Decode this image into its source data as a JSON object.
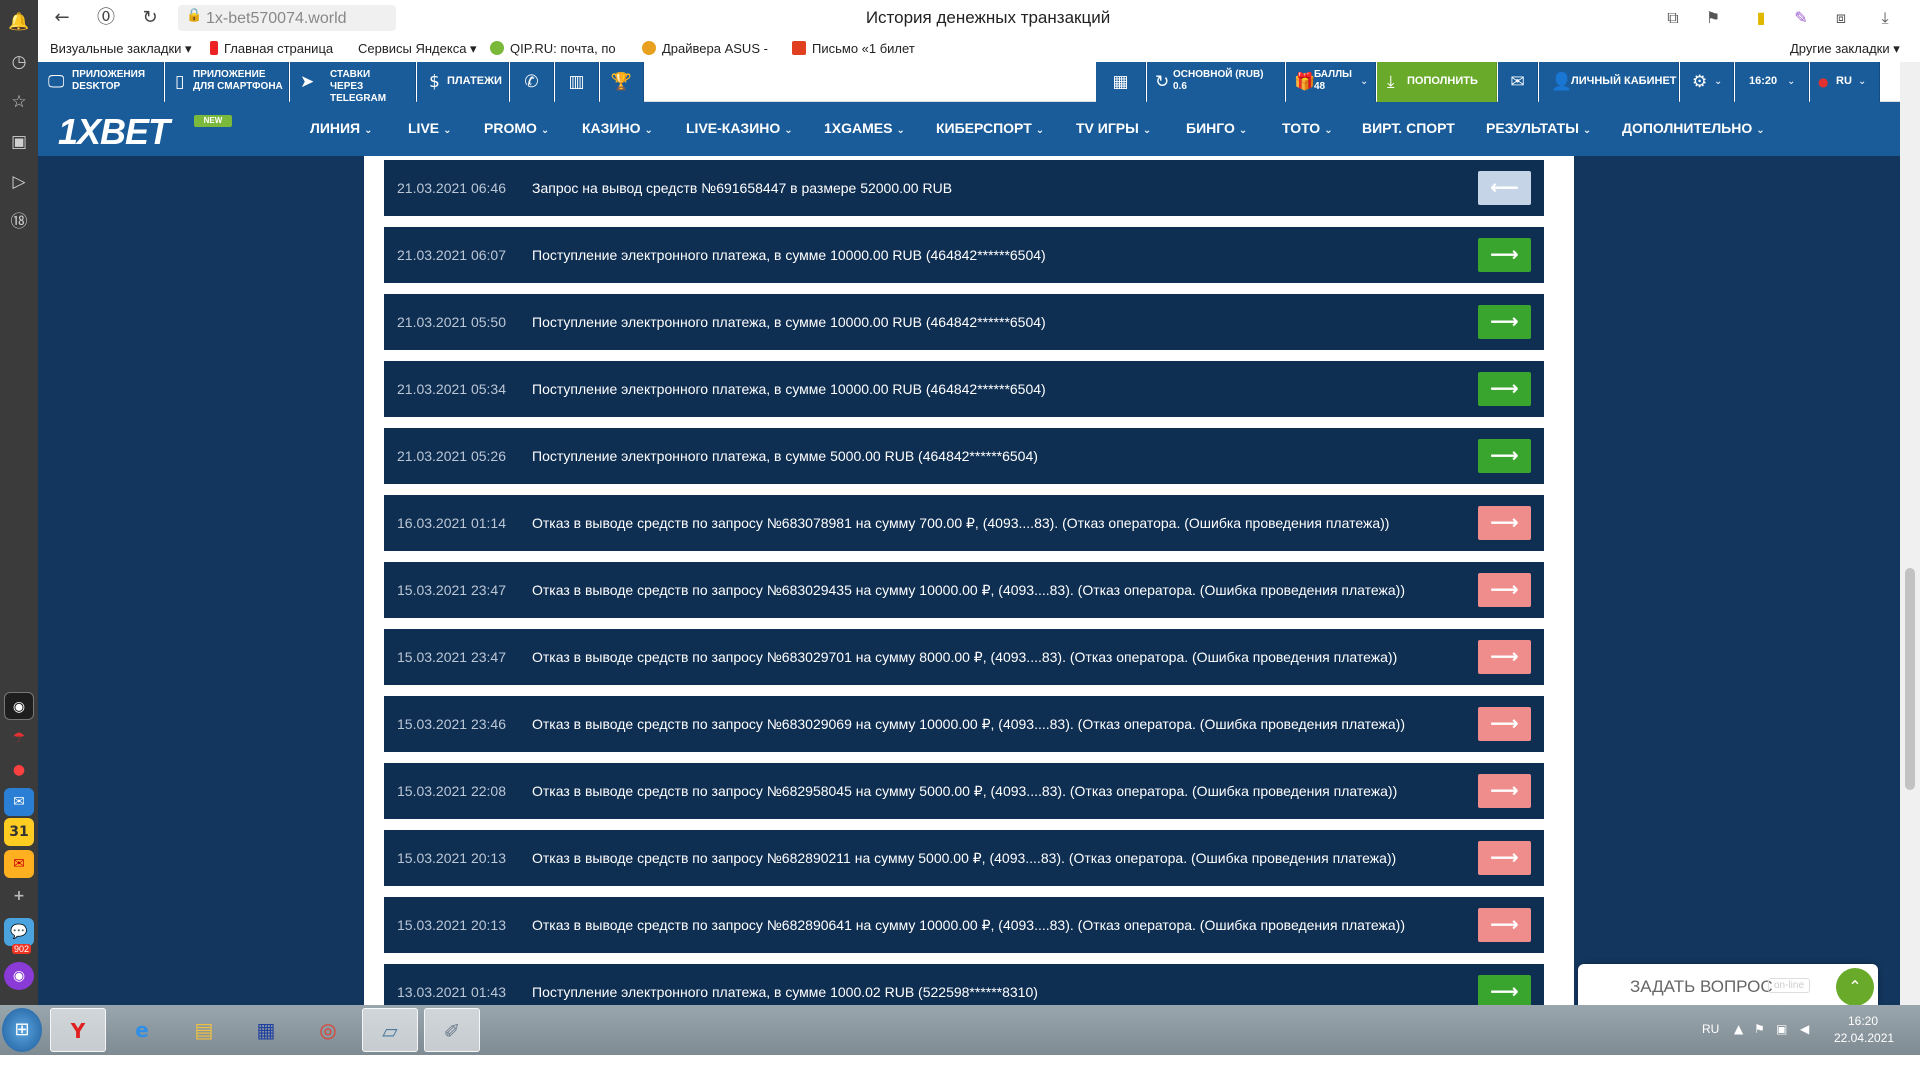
{
  "browser": {
    "url": "1x-bet570074.world",
    "page_title": "История денежных транзакций",
    "bookmarks": [
      {
        "label": "Визуальные закладки ▾"
      },
      {
        "label": "Главная страница"
      },
      {
        "label": "Сервисы Яндекса ▾"
      },
      {
        "label": "QIP.RU: почта, по"
      },
      {
        "label": "Драйвера ASUS -"
      },
      {
        "label": "Письмо «1 билет"
      }
    ],
    "other_bookmarks": "Другие закладки ▾"
  },
  "site_toolbar": {
    "apps_desktop": [
      "ПРИЛОЖЕНИЯ",
      "DESKTOP"
    ],
    "app_phone": [
      "ПРИЛОЖЕНИЕ",
      "ДЛЯ СМАРТФОНА"
    ],
    "telegram": [
      "СТАВКИ",
      "ЧЕРЕЗ TELEGRAM"
    ],
    "payments": "ПЛАТЕЖИ",
    "balance": [
      "ОСНОВНОЙ (RUB)",
      "0.6"
    ],
    "points": [
      "БАЛЛЫ",
      "48"
    ],
    "deposit": "ПОПОЛНИТЬ",
    "cabinet": "ЛИЧНЫЙ КАБИНЕТ",
    "time": "16:20",
    "lang": "RU"
  },
  "main_nav": {
    "logo": "1XBET",
    "logo_badge": "NEW",
    "items": [
      "ЛИНИЯ",
      "LIVE",
      "PROMO",
      "КАЗИНО",
      "LIVE-КАЗИНО",
      "1XGAMES",
      "КИБЕРСПОРТ",
      "TV ИГРЫ",
      "БИНГО",
      "ТОТО",
      "ВИРТ. СПОРТ",
      "РЕЗУЛЬТАТЫ",
      "ДОПОЛНИТЕЛЬНО"
    ]
  },
  "transactions": [
    {
      "date": "21.03.2021 06:46",
      "desc": "Запрос на вывод средств №691658447 в размере 52000.00 RUB",
      "type": "pending"
    },
    {
      "date": "21.03.2021 06:07",
      "desc": "Поступление электронного платежа, в сумме 10000.00 RUB (464842******6504)",
      "type": "in"
    },
    {
      "date": "21.03.2021 05:50",
      "desc": "Поступление электронного платежа, в сумме 10000.00 RUB (464842******6504)",
      "type": "in"
    },
    {
      "date": "21.03.2021 05:34",
      "desc": "Поступление электронного платежа, в сумме 10000.00 RUB (464842******6504)",
      "type": "in"
    },
    {
      "date": "21.03.2021 05:26",
      "desc": "Поступление электронного платежа, в сумме 5000.00 RUB (464842******6504)",
      "type": "in"
    },
    {
      "date": "16.03.2021 01:14",
      "desc": "Отказ в выводе средств по запросу №683078981 на сумму 700.00 ₽, (4093....83). (Отказ оператора. (Ошибка проведения платежа))",
      "type": "rejected"
    },
    {
      "date": "15.03.2021 23:47",
      "desc": "Отказ в выводе средств по запросу №683029435 на сумму 10000.00 ₽, (4093....83). (Отказ оператора. (Ошибка проведения платежа))",
      "type": "rejected"
    },
    {
      "date": "15.03.2021 23:47",
      "desc": "Отказ в выводе средств по запросу №683029701 на сумму 8000.00 ₽, (4093....83). (Отказ оператора. (Ошибка проведения платежа))",
      "type": "rejected"
    },
    {
      "date": "15.03.2021 23:46",
      "desc": "Отказ в выводе средств по запросу №683029069 на сумму 10000.00 ₽, (4093....83). (Отказ оператора. (Ошибка проведения платежа))",
      "type": "rejected"
    },
    {
      "date": "15.03.2021 22:08",
      "desc": "Отказ в выводе средств по запросу №682958045 на сумму 5000.00 ₽, (4093....83). (Отказ оператора. (Ошибка проведения платежа))",
      "type": "rejected"
    },
    {
      "date": "15.03.2021 20:13",
      "desc": "Отказ в выводе средств по запросу №682890211 на сумму 5000.00 ₽, (4093....83). (Отказ оператора. (Ошибка проведения платежа))",
      "type": "rejected"
    },
    {
      "date": "15.03.2021 20:13",
      "desc": "Отказ в выводе средств по запросу №682890641 на сумму 10000.00 ₽, (4093....83). (Отказ оператора. (Ошибка проведения платежа))",
      "type": "rejected"
    },
    {
      "date": "13.03.2021 01:43",
      "desc": "Поступление электронного платежа, в сумме 1000.02 RUB (522598******8310)",
      "type": "in"
    }
  ],
  "badge_colors": {
    "pending": "#c5d4e6",
    "in": "#3aa52e",
    "rejected": "#ef8c8c"
  },
  "chat": {
    "label": "ЗАДАТЬ ВОПРОС",
    "status": "on-line"
  },
  "taskbar": {
    "lang": "RU",
    "time": "16:20",
    "date": "22.04.2021",
    "badge_count": "902",
    "calendar_day": "31"
  }
}
